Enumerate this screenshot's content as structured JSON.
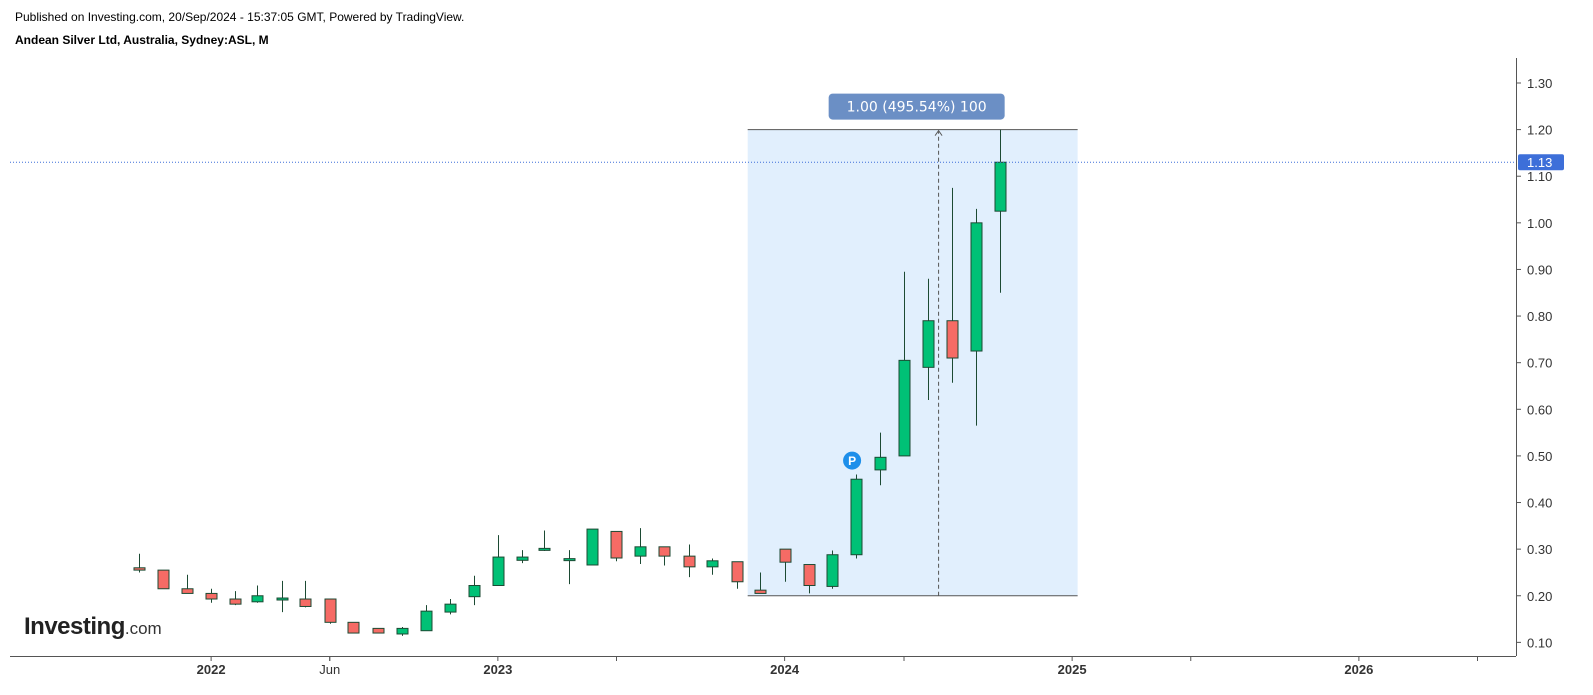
{
  "header": {
    "published": "Published on Investing.com, 20/Sep/2024 - 15:37:05 GMT, Powered by TradingView.",
    "title": "Andean Silver Ltd, Australia, Sydney:ASL, M"
  },
  "logo": {
    "brand": "Investing",
    "suffix": ".com"
  },
  "colors": {
    "up": "#00c176",
    "down": "#f66b65",
    "wick": "#1c4a33",
    "range_fill": "#e1effd",
    "range_border": "#555555",
    "range_label_bg": "#6b8fc5",
    "last_price_line": "#3d6fd9",
    "last_price_badge": "#3d6fd9",
    "marker": "#1e8fea",
    "axis": "#555555",
    "tick_text": "#333333"
  },
  "chart_data": {
    "type": "candlestick",
    "interval": "M",
    "y_axis": {
      "position": "right",
      "range": [
        0.03,
        1.33
      ],
      "ticks": [
        "0.10",
        "0.20",
        "0.30",
        "0.40",
        "0.50",
        "0.60",
        "0.70",
        "0.80",
        "0.90",
        "1.00",
        "1.10",
        "1.20",
        "1.30"
      ]
    },
    "x_axis": {
      "range": [
        "2021-04-20",
        "2026-07-20"
      ],
      "labels": [
        {
          "text": "2022",
          "date": "2022-01-01",
          "bold": true
        },
        {
          "text": "Jun",
          "date": "2022-06-01",
          "bold": false
        },
        {
          "text": "2023",
          "date": "2023-01-01",
          "bold": true
        },
        {
          "text": "2024",
          "date": "2024-01-01",
          "bold": true
        },
        {
          "text": "2025",
          "date": "2025-01-01",
          "bold": true
        },
        {
          "text": "2026",
          "date": "2026-01-01",
          "bold": true
        }
      ],
      "minor_ticks": [
        "2022-06-01",
        "2023-06-01",
        "2024-06-01",
        "2025-06-01",
        "2026-06-01"
      ]
    },
    "candles": [
      {
        "date": "2021-10-01",
        "open": 0.26,
        "high": 0.29,
        "low": 0.25,
        "close": 0.255
      },
      {
        "date": "2021-11-01",
        "open": 0.255,
        "high": 0.255,
        "low": 0.215,
        "close": 0.215
      },
      {
        "date": "2021-12-01",
        "open": 0.215,
        "high": 0.245,
        "low": 0.205,
        "close": 0.205
      },
      {
        "date": "2022-01-01",
        "open": 0.205,
        "high": 0.215,
        "low": 0.185,
        "close": 0.193
      },
      {
        "date": "2022-02-01",
        "open": 0.193,
        "high": 0.21,
        "low": 0.18,
        "close": 0.182
      },
      {
        "date": "2022-03-01",
        "open": 0.187,
        "high": 0.222,
        "low": 0.185,
        "close": 0.2
      },
      {
        "date": "2022-04-01",
        "open": 0.193,
        "high": 0.232,
        "low": 0.165,
        "close": 0.193
      },
      {
        "date": "2022-05-01",
        "open": 0.193,
        "high": 0.232,
        "low": 0.175,
        "close": 0.177
      },
      {
        "date": "2022-06-01",
        "open": 0.193,
        "high": 0.193,
        "low": 0.14,
        "close": 0.143
      },
      {
        "date": "2022-07-01",
        "open": 0.143,
        "high": 0.143,
        "low": 0.12,
        "close": 0.12
      },
      {
        "date": "2022-08-01",
        "open": 0.13,
        "high": 0.13,
        "low": 0.12,
        "close": 0.12
      },
      {
        "date": "2022-09-01",
        "open": 0.118,
        "high": 0.133,
        "low": 0.114,
        "close": 0.13
      },
      {
        "date": "2022-10-01",
        "open": 0.125,
        "high": 0.18,
        "low": 0.125,
        "close": 0.167
      },
      {
        "date": "2022-11-01",
        "open": 0.165,
        "high": 0.193,
        "low": 0.16,
        "close": 0.182
      },
      {
        "date": "2022-12-01",
        "open": 0.198,
        "high": 0.243,
        "low": 0.18,
        "close": 0.222
      },
      {
        "date": "2023-01-01",
        "open": 0.222,
        "high": 0.33,
        "low": 0.222,
        "close": 0.283
      },
      {
        "date": "2023-02-01",
        "open": 0.276,
        "high": 0.298,
        "low": 0.27,
        "close": 0.283
      },
      {
        "date": "2023-03-01",
        "open": 0.298,
        "high": 0.34,
        "low": 0.296,
        "close": 0.301
      },
      {
        "date": "2023-04-01",
        "open": 0.276,
        "high": 0.298,
        "low": 0.225,
        "close": 0.279
      },
      {
        "date": "2023-05-01",
        "open": 0.266,
        "high": 0.343,
        "low": 0.266,
        "close": 0.343
      },
      {
        "date": "2023-06-01",
        "open": 0.338,
        "high": 0.338,
        "low": 0.274,
        "close": 0.281
      },
      {
        "date": "2023-07-01",
        "open": 0.285,
        "high": 0.345,
        "low": 0.268,
        "close": 0.305
      },
      {
        "date": "2023-08-01",
        "open": 0.305,
        "high": 0.305,
        "low": 0.265,
        "close": 0.285
      },
      {
        "date": "2023-09-01",
        "open": 0.285,
        "high": 0.31,
        "low": 0.24,
        "close": 0.262
      },
      {
        "date": "2023-10-01",
        "open": 0.262,
        "high": 0.28,
        "low": 0.245,
        "close": 0.275
      },
      {
        "date": "2023-11-01",
        "open": 0.273,
        "high": 0.273,
        "low": 0.215,
        "close": 0.23
      },
      {
        "date": "2023-12-01",
        "open": 0.212,
        "high": 0.25,
        "low": 0.205,
        "close": 0.205
      },
      {
        "date": "2024-01-01",
        "open": 0.3,
        "high": 0.3,
        "low": 0.23,
        "close": 0.272
      },
      {
        "date": "2024-02-01",
        "open": 0.267,
        "high": 0.267,
        "low": 0.205,
        "close": 0.222
      },
      {
        "date": "2024-03-01",
        "open": 0.22,
        "high": 0.297,
        "low": 0.215,
        "close": 0.288
      },
      {
        "date": "2024-04-01",
        "open": 0.288,
        "high": 0.46,
        "low": 0.28,
        "close": 0.45
      },
      {
        "date": "2024-05-01",
        "open": 0.47,
        "high": 0.55,
        "low": 0.437,
        "close": 0.497
      },
      {
        "date": "2024-06-01",
        "open": 0.5,
        "high": 0.895,
        "low": 0.5,
        "close": 0.705
      },
      {
        "date": "2024-07-01",
        "open": 0.69,
        "high": 0.88,
        "low": 0.62,
        "close": 0.79
      },
      {
        "date": "2024-08-01",
        "open": 0.79,
        "high": 1.075,
        "low": 0.657,
        "close": 0.71
      },
      {
        "date": "2024-09-01",
        "open": 0.725,
        "high": 1.03,
        "low": 0.565,
        "close": 1.0
      },
      {
        "date": "2024-10-01",
        "open": 1.025,
        "high": 1.2,
        "low": 0.85,
        "close": 1.13
      }
    ],
    "last_price": {
      "value": 1.13,
      "label": "1.13"
    },
    "price_range_tool": {
      "from_date": "2023-11-15",
      "to_date": "2025-01-08",
      "low": 0.2,
      "high": 1.2,
      "arrow_date": "2024-07-15",
      "label": "1.00 (495.54%) 100"
    },
    "marker": {
      "date": "2024-04-01",
      "value": 0.49,
      "label": "P"
    }
  }
}
